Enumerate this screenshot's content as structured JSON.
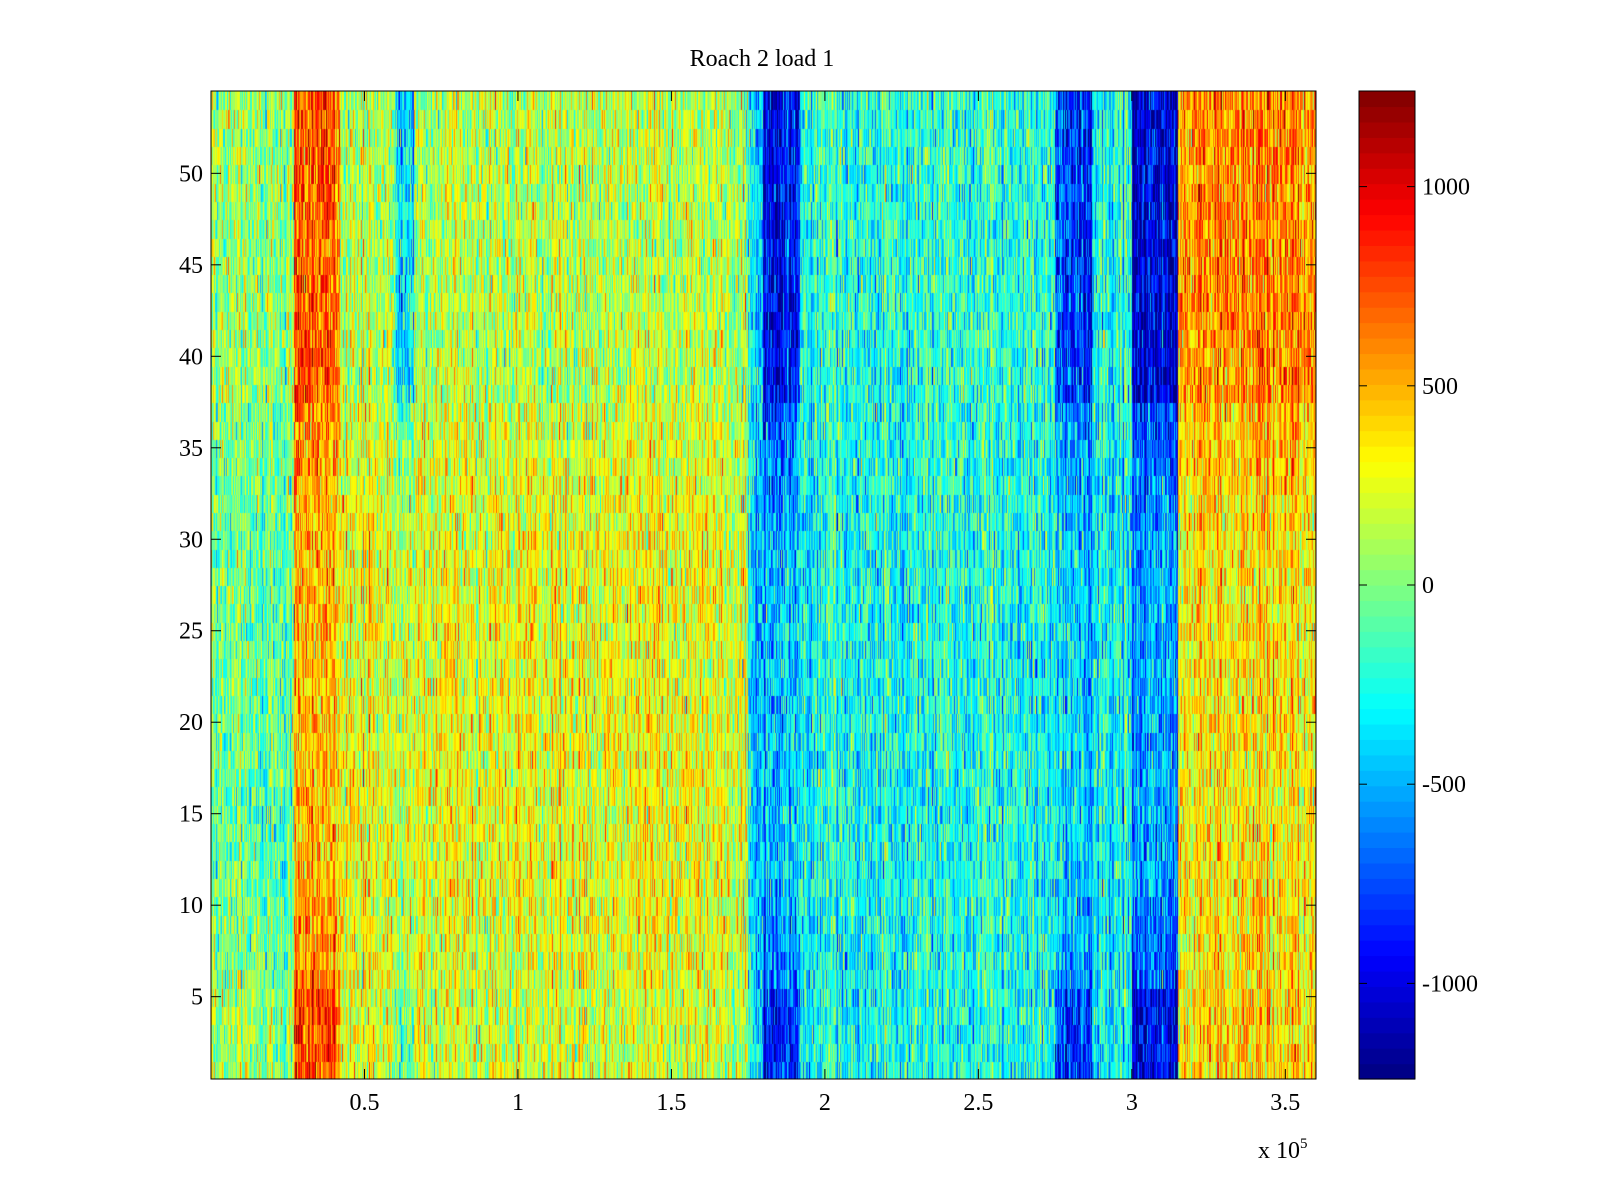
{
  "chart_data": {
    "type": "heatmap",
    "title": "Roach 2 load 1",
    "xlabel": "",
    "ylabel": "",
    "x_multiplier_label": "x 10",
    "x_multiplier_exponent": "5",
    "xlim": [
      0,
      3.6
    ],
    "ylim": [
      0.5,
      54.5
    ],
    "rows": 54,
    "x_ticks": [
      0.5,
      1,
      1.5,
      2,
      2.5,
      3,
      3.5
    ],
    "x_tick_labels": [
      "0.5",
      "1",
      "1.5",
      "2",
      "2.5",
      "3",
      "3.5"
    ],
    "y_ticks": [
      5,
      10,
      15,
      20,
      25,
      30,
      35,
      40,
      45,
      50
    ],
    "y_tick_labels": [
      "5",
      "10",
      "15",
      "20",
      "25",
      "30",
      "35",
      "40",
      "45",
      "50"
    ],
    "colormap": "jet",
    "clim": [
      -1240,
      1240
    ],
    "colorbar_ticks": [
      1000,
      500,
      0,
      -500,
      -1000
    ],
    "colorbar_tick_labels": [
      "1000",
      "500",
      "0",
      "-500",
      "-1000"
    ],
    "noise_std": 260,
    "bands": [
      {
        "x": [
          0.0,
          0.27
        ],
        "bottom": 50,
        "middle": -80,
        "top": 50
      },
      {
        "x": [
          0.27,
          0.42
        ],
        "bottom": 750,
        "middle": 450,
        "top": 700
      },
      {
        "x": [
          0.42,
          0.6
        ],
        "bottom": 250,
        "middle": 300,
        "top": 150
      },
      {
        "x": [
          0.6,
          0.66
        ],
        "bottom": 0,
        "middle": 200,
        "top": -350
      },
      {
        "x": [
          0.66,
          1.75
        ],
        "bottom": 200,
        "middle": 280,
        "top": 150
      },
      {
        "x": [
          1.75,
          1.8
        ],
        "bottom": -350,
        "middle": -400,
        "top": -300
      },
      {
        "x": [
          1.8,
          1.92
        ],
        "bottom": -850,
        "middle": -450,
        "top": -950
      },
      {
        "x": [
          1.92,
          2.75
        ],
        "bottom": -250,
        "middle": -250,
        "top": -200
      },
      {
        "x": [
          2.75,
          2.87
        ],
        "bottom": -750,
        "middle": -350,
        "top": -750
      },
      {
        "x": [
          2.87,
          3.0
        ],
        "bottom": -300,
        "middle": -300,
        "top": -250
      },
      {
        "x": [
          3.0,
          3.15
        ],
        "bottom": -1000,
        "middle": -550,
        "top": -1050
      },
      {
        "x": [
          3.15,
          3.6
        ],
        "bottom": 400,
        "middle": 350,
        "top": 600
      }
    ]
  }
}
